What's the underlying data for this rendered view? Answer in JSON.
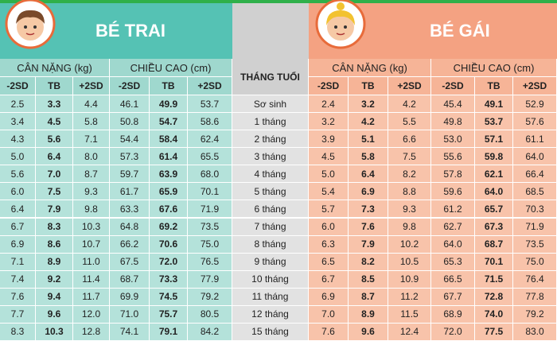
{
  "boys": {
    "title": "BÉ TRAI",
    "weight_header": "CÂN NẶNG (kg)",
    "height_header": "CHIỀU CAO (cm)",
    "weight_sub": [
      "-2SD",
      "TB",
      "+2SD"
    ],
    "height_sub": [
      "-2SD",
      "TB",
      "+2SD"
    ]
  },
  "girls": {
    "title": "BÉ GÁI",
    "weight_header": "CÂN NẶNG (kg)",
    "height_header": "CHIỀU CAO (cm)",
    "weight_sub": [
      "-2SD",
      "TB",
      "+2SD"
    ],
    "height_sub": [
      "-2SD",
      "TB",
      "+2SD"
    ]
  },
  "age_header": "THÁNG TUỔI",
  "table": {
    "rows": [
      {
        "age": "Sơ sinh",
        "boys": [
          "2.5",
          "3.3",
          "4.4",
          "46.1",
          "49.9",
          "53.7"
        ],
        "girls": [
          "2.4",
          "3.2",
          "4.2",
          "45.4",
          "49.1",
          "52.9"
        ]
      },
      {
        "age": "1 tháng",
        "boys": [
          "3.4",
          "4.5",
          "5.8",
          "50.8",
          "54.7",
          "58.6"
        ],
        "girls": [
          "3.2",
          "4.2",
          "5.5",
          "49.8",
          "53.7",
          "57.6"
        ]
      },
      {
        "age": "2 tháng",
        "boys": [
          "4.3",
          "5.6",
          "7.1",
          "54.4",
          "58.4",
          "62.4"
        ],
        "girls": [
          "3.9",
          "5.1",
          "6.6",
          "53.0",
          "57.1",
          "61.1"
        ]
      },
      {
        "age": "3 tháng",
        "boys": [
          "5.0",
          "6.4",
          "8.0",
          "57.3",
          "61.4",
          "65.5"
        ],
        "girls": [
          "4.5",
          "5.8",
          "7.5",
          "55.6",
          "59.8",
          "64.0"
        ]
      },
      {
        "age": "4 tháng",
        "boys": [
          "5.6",
          "7.0",
          "8.7",
          "59.7",
          "63.9",
          "68.0"
        ],
        "girls": [
          "5.0",
          "6.4",
          "8.2",
          "57.8",
          "62.1",
          "66.4"
        ]
      },
      {
        "age": "5 tháng",
        "boys": [
          "6.0",
          "7.5",
          "9.3",
          "61.7",
          "65.9",
          "70.1"
        ],
        "girls": [
          "5.4",
          "6.9",
          "8.8",
          "59.6",
          "64.0",
          "68.5"
        ]
      },
      {
        "age": "6 tháng",
        "boys": [
          "6.4",
          "7.9",
          "9.8",
          "63.3",
          "67.6",
          "71.9"
        ],
        "girls": [
          "5.7",
          "7.3",
          "9.3",
          "61.2",
          "65.7",
          "70.3"
        ]
      },
      {
        "age": "7 tháng",
        "boys": [
          "6.7",
          "8.3",
          "10.3",
          "64.8",
          "69.2",
          "73.5"
        ],
        "girls": [
          "6.0",
          "7.6",
          "9.8",
          "62.7",
          "67.3",
          "71.9"
        ]
      },
      {
        "age": "8 tháng",
        "boys": [
          "6.9",
          "8.6",
          "10.7",
          "66.2",
          "70.6",
          "75.0"
        ],
        "girls": [
          "6.3",
          "7.9",
          "10.2",
          "64.0",
          "68.7",
          "73.5"
        ]
      },
      {
        "age": "9 tháng",
        "boys": [
          "7.1",
          "8.9",
          "11.0",
          "67.5",
          "72.0",
          "76.5"
        ],
        "girls": [
          "6.5",
          "8.2",
          "10.5",
          "65.3",
          "70.1",
          "75.0"
        ]
      },
      {
        "age": "10 tháng",
        "boys": [
          "7.4",
          "9.2",
          "11.4",
          "68.7",
          "73.3",
          "77.9"
        ],
        "girls": [
          "6.7",
          "8.5",
          "10.9",
          "66.5",
          "71.5",
          "76.4"
        ]
      },
      {
        "age": "11 tháng",
        "boys": [
          "7.6",
          "9.4",
          "11.7",
          "69.9",
          "74.5",
          "79.2"
        ],
        "girls": [
          "6.9",
          "8.7",
          "11.2",
          "67.7",
          "72.8",
          "77.8"
        ]
      },
      {
        "age": "12 tháng",
        "boys": [
          "7.7",
          "9.6",
          "12.0",
          "71.0",
          "75.7",
          "80.5"
        ],
        "girls": [
          "7.0",
          "8.9",
          "11.5",
          "68.9",
          "74.0",
          "79.2"
        ]
      },
      {
        "age": "15 tháng",
        "boys": [
          "8.3",
          "10.3",
          "12.8",
          "74.1",
          "79.1",
          "84.2"
        ],
        "girls": [
          "7.6",
          "9.6",
          "12.4",
          "72.0",
          "77.5",
          "83.0"
        ]
      }
    ]
  }
}
